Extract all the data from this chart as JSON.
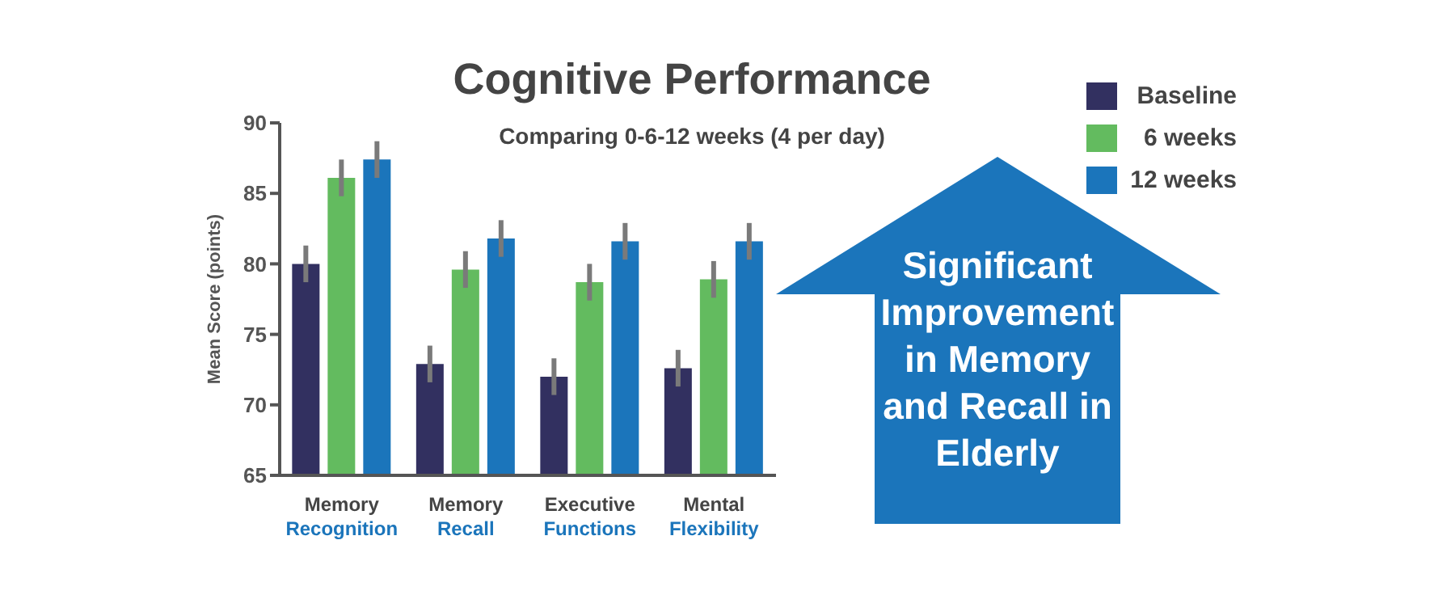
{
  "chart_data": {
    "type": "bar",
    "title": "Cognitive Performance",
    "subtitle": "Comparing 0-6-12 weeks (4 per day)",
    "ylabel": "Mean Score (points)",
    "categories": [
      "Memory Recognition",
      "Memory Recall",
      "Executive Functions",
      "Mental Flexibility"
    ],
    "series": [
      {
        "name": "Baseline",
        "color": "#323060",
        "values": [
          80,
          72.9,
          72,
          72.6
        ],
        "errors": [
          1.3,
          1.3,
          1.3,
          1.3
        ]
      },
      {
        "name": "6 weeks",
        "color": "#63bb5f",
        "values": [
          86.1,
          79.6,
          78.7,
          78.9
        ],
        "errors": [
          1.3,
          1.3,
          1.3,
          1.3
        ]
      },
      {
        "name": "12 weeks",
        "color": "#1b75bb",
        "values": [
          87.4,
          81.8,
          81.6,
          81.6
        ],
        "errors": [
          1.3,
          1.3,
          1.3,
          1.3
        ]
      }
    ],
    "ylim": [
      65,
      90
    ],
    "yticks": [
      65,
      70,
      75,
      80,
      85,
      90
    ],
    "grid": false,
    "legend": "top right",
    "annotations": [
      "Significant Improvement in Memory and Recall in Elderly"
    ]
  }
}
